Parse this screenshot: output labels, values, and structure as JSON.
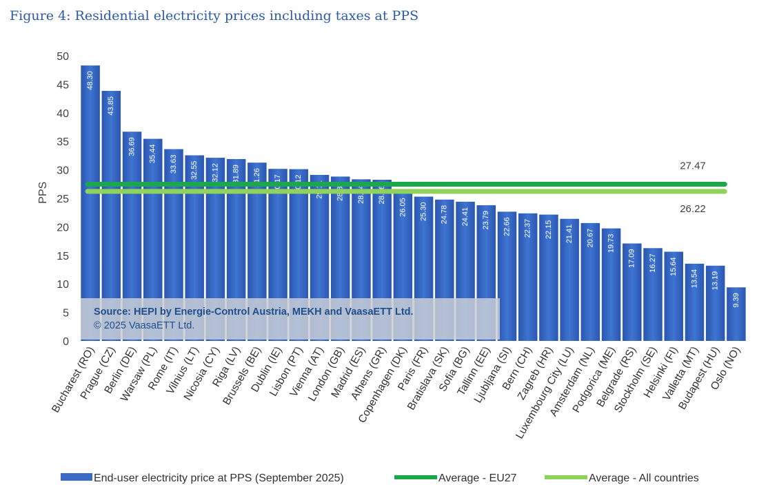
{
  "chart_data": {
    "type": "bar",
    "title": "Figure 4: Residential electricity prices including taxes at PPS",
    "ylabel": "PPS",
    "xlabel": "",
    "ylim": [
      0,
      50
    ],
    "yticks": [
      0,
      5,
      10,
      15,
      20,
      25,
      30,
      35,
      40,
      45,
      50
    ],
    "categories": [
      "Bucharest (RO)",
      "Prague (CZ)",
      "Berlin (DE)",
      "Warsaw (PL)",
      "Rome (IT)",
      "Vilnius (LT)",
      "Nicosia (CY)",
      "Riga (LV)",
      "Brussels (BE)",
      "Dublin (IE)",
      "Lisbon (PT)",
      "Vienna (AT)",
      "London (GB)",
      "Madrid (ES)",
      "Athens (GR)",
      "Copenhagen (DK)",
      "Paris (FR)",
      "Bratislava (SK)",
      "Sofia (BG)",
      "Tallinn (EE)",
      "Ljubljana (SI)",
      "Bern (CH)",
      "Zagreb (HR)",
      "Luxembourg City (LU)",
      "Amsterdam (NL)",
      "Podgorica (ME)",
      "Belgrade (RS)",
      "Stockholm (SE)",
      "Helsinki (FI)",
      "Valletta (MT)",
      "Budapest (HU)",
      "Oslo (NO)"
    ],
    "series": [
      {
        "name": "End-user electricity price at PPS (September 2025)",
        "color": "#3366c4",
        "values": [
          48.3,
          43.85,
          36.69,
          35.44,
          33.63,
          32.55,
          32.12,
          31.89,
          31.26,
          30.17,
          30.12,
          29.11,
          28.82,
          28.34,
          28.26,
          26.05,
          25.3,
          24.78,
          24.41,
          23.79,
          22.66,
          22.37,
          22.15,
          21.41,
          20.67,
          19.73,
          17.09,
          16.27,
          15.64,
          13.54,
          13.19,
          9.39
        ],
        "labels": [
          "48.30",
          "43.85",
          "36.69",
          "35.44",
          "33.63",
          "32.55",
          "32.12",
          "31.89",
          "31.26",
          "30.17",
          "30.12",
          "29.11",
          "28.82",
          "28.34",
          "28.26",
          "26.05",
          "25.30",
          "24.78",
          "24.41",
          "23.79",
          "22.66",
          "22.37",
          "22.15",
          "21.41",
          "20.67",
          "19.73",
          "17.09",
          "16.27",
          "15.64",
          "13.54",
          "13.19",
          "9.39"
        ]
      }
    ],
    "reference_lines": [
      {
        "name": "Average - EU27",
        "value": 27.47,
        "label": "27.47",
        "color": "#1aa84a"
      },
      {
        "name": "Average - All countries",
        "value": 26.22,
        "label": "26.22",
        "color": "#8fd35a"
      }
    ],
    "annotation": {
      "line1": "Source: HEPI by Energie-Control Austria, MEKH and VaasaETT Ltd.",
      "line2": "© 2025 VaasaETT Ltd."
    },
    "legend_position": "bottom",
    "grid": false
  }
}
